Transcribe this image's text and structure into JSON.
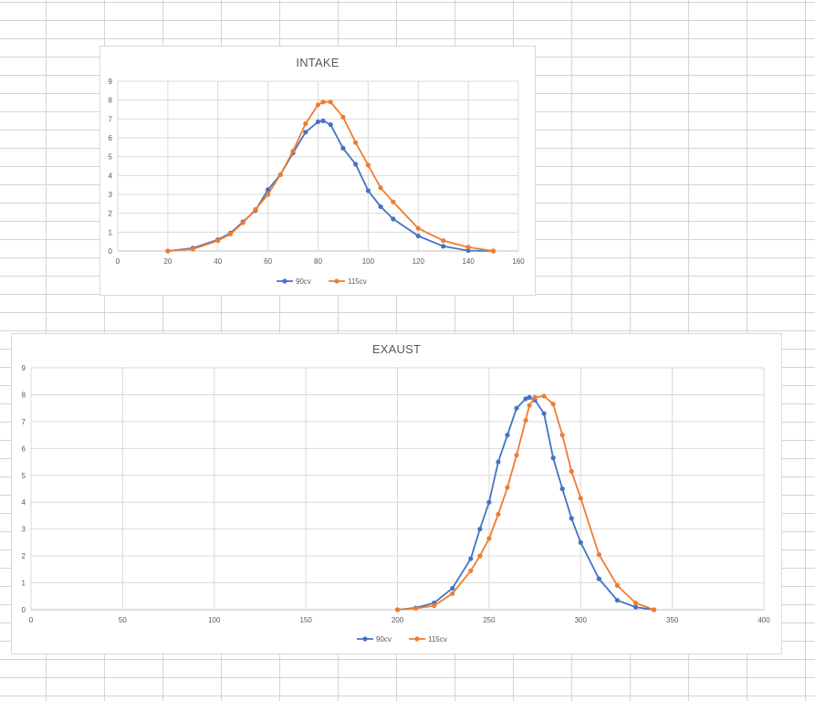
{
  "chart_data": [
    {
      "type": "line",
      "title": "INTAKE",
      "xlim": [
        0,
        160
      ],
      "ylim": [
        0,
        9
      ],
      "x_ticks": [
        "0",
        "20",
        "40",
        "60",
        "80",
        "100",
        "120",
        "140",
        "160"
      ],
      "y_ticks": [
        "0",
        "1",
        "2",
        "3",
        "4",
        "5",
        "6",
        "7",
        "8",
        "9"
      ],
      "grid": true,
      "legend_position": "bottom",
      "series": [
        {
          "name": "90cv",
          "color": "#4472c4",
          "points": [
            [
              20,
              0
            ],
            [
              30,
              0.15
            ],
            [
              40,
              0.6
            ],
            [
              45,
              0.95
            ],
            [
              50,
              1.55
            ],
            [
              55,
              2.15
            ],
            [
              60,
              3.25
            ],
            [
              65,
              4.05
            ],
            [
              70,
              5.2
            ],
            [
              75,
              6.3
            ],
            [
              80,
              6.85
            ],
            [
              82,
              6.9
            ],
            [
              85,
              6.7
            ],
            [
              90,
              5.45
            ],
            [
              95,
              4.6
            ],
            [
              100,
              3.2
            ],
            [
              105,
              2.35
            ],
            [
              110,
              1.7
            ],
            [
              120,
              0.8
            ],
            [
              130,
              0.25
            ],
            [
              140,
              0.02
            ],
            [
              150,
              0
            ]
          ]
        },
        {
          "name": "115cv",
          "color": "#ed7d31",
          "points": [
            [
              20,
              0
            ],
            [
              30,
              0.1
            ],
            [
              40,
              0.55
            ],
            [
              45,
              0.9
            ],
            [
              50,
              1.5
            ],
            [
              55,
              2.2
            ],
            [
              60,
              3.0
            ],
            [
              65,
              4.05
            ],
            [
              70,
              5.3
            ],
            [
              75,
              6.75
            ],
            [
              80,
              7.75
            ],
            [
              82,
              7.9
            ],
            [
              85,
              7.9
            ],
            [
              90,
              7.1
            ],
            [
              95,
              5.75
            ],
            [
              100,
              4.55
            ],
            [
              105,
              3.35
            ],
            [
              110,
              2.6
            ],
            [
              120,
              1.2
            ],
            [
              130,
              0.55
            ],
            [
              140,
              0.2
            ],
            [
              150,
              0
            ]
          ]
        }
      ]
    },
    {
      "type": "line",
      "title": "EXAUST",
      "xlim": [
        0,
        400
      ],
      "ylim": [
        0,
        9
      ],
      "x_ticks": [
        "0",
        "50",
        "100",
        "150",
        "200",
        "250",
        "300",
        "350",
        "400"
      ],
      "y_ticks": [
        "0",
        "1",
        "2",
        "3",
        "4",
        "5",
        "6",
        "7",
        "8",
        "9"
      ],
      "grid": true,
      "legend_position": "bottom",
      "series": [
        {
          "name": "90cv",
          "color": "#4472c4",
          "points": [
            [
              200,
              0
            ],
            [
              210,
              0.07
            ],
            [
              220,
              0.25
            ],
            [
              230,
              0.8
            ],
            [
              240,
              1.9
            ],
            [
              245,
              3.0
            ],
            [
              250,
              4.0
            ],
            [
              255,
              5.5
            ],
            [
              260,
              6.5
            ],
            [
              265,
              7.5
            ],
            [
              270,
              7.85
            ],
            [
              272,
              7.9
            ],
            [
              275,
              7.8
            ],
            [
              280,
              7.3
            ],
            [
              285,
              5.65
            ],
            [
              290,
              4.5
            ],
            [
              295,
              3.4
            ],
            [
              300,
              2.5
            ],
            [
              310,
              1.15
            ],
            [
              320,
              0.35
            ],
            [
              330,
              0.1
            ],
            [
              340,
              0
            ]
          ]
        },
        {
          "name": "115cv",
          "color": "#ed7d31",
          "points": [
            [
              200,
              0
            ],
            [
              210,
              0.05
            ],
            [
              220,
              0.15
            ],
            [
              230,
              0.6
            ],
            [
              240,
              1.45
            ],
            [
              245,
              2.0
            ],
            [
              250,
              2.65
            ],
            [
              255,
              3.55
            ],
            [
              260,
              4.55
            ],
            [
              265,
              5.75
            ],
            [
              270,
              7.05
            ],
            [
              272,
              7.6
            ],
            [
              275,
              7.9
            ],
            [
              280,
              7.95
            ],
            [
              285,
              7.65
            ],
            [
              290,
              6.5
            ],
            [
              295,
              5.15
            ],
            [
              300,
              4.15
            ],
            [
              310,
              2.05
            ],
            [
              320,
              0.9
            ],
            [
              330,
              0.25
            ],
            [
              340,
              0
            ]
          ]
        }
      ]
    }
  ]
}
